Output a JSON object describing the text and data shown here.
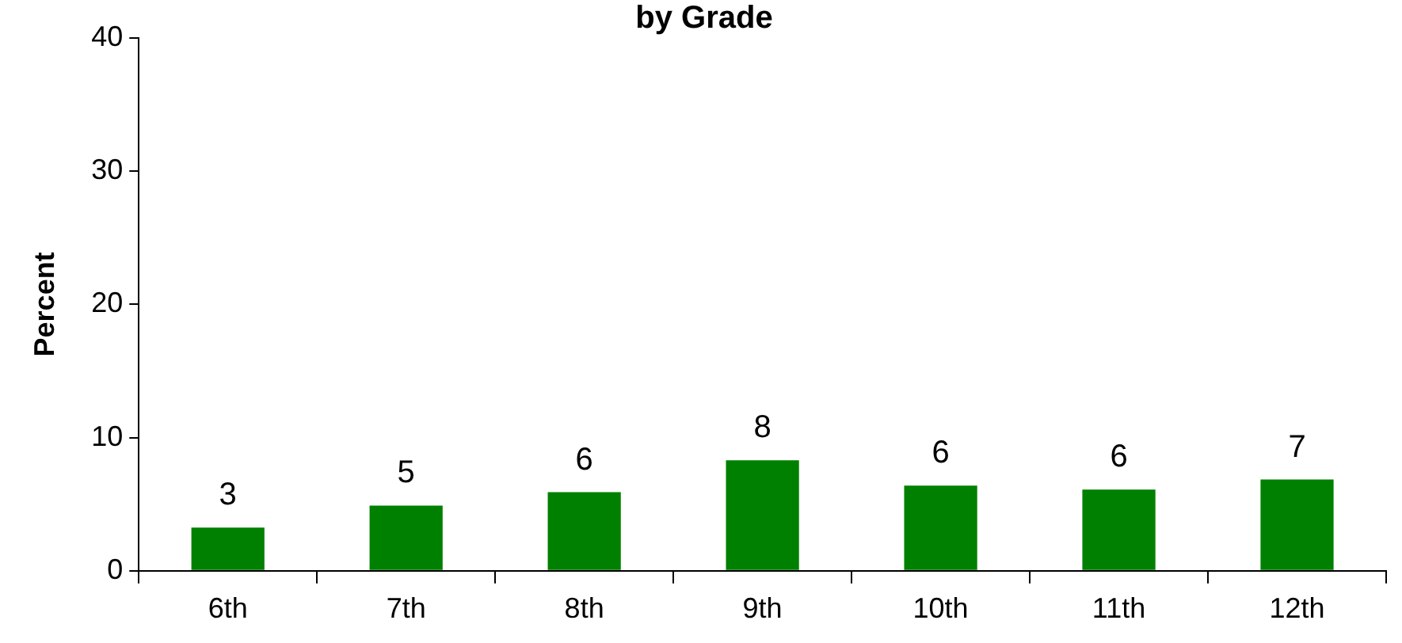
{
  "chart_data": {
    "type": "bar",
    "title": "by Grade",
    "ylabel": "Percent",
    "categories": [
      "6th",
      "7th",
      "8th",
      "9th",
      "10th",
      "11th",
      "12th"
    ],
    "values": [
      3.25,
      4.9,
      5.9,
      8.3,
      6.4,
      6.1,
      6.85
    ],
    "value_labels": [
      "3",
      "5",
      "6",
      "8",
      "6",
      "6",
      "7"
    ],
    "color": "#008000",
    "ylim": [
      0,
      40
    ],
    "yticks": [
      0,
      10,
      20,
      30,
      40
    ],
    "grid": false,
    "legend": false
  }
}
